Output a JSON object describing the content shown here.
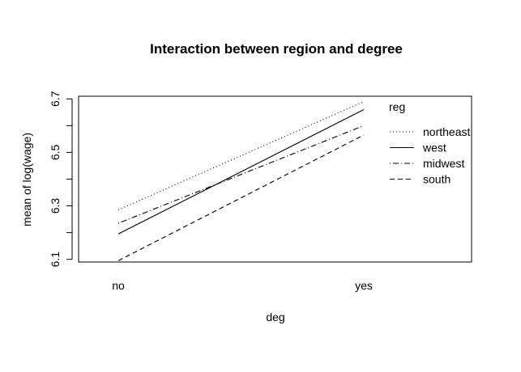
{
  "chart_data": {
    "type": "line",
    "title": "Interaction between region and degree",
    "xlabel": "deg",
    "ylabel": "mean of  log(wage)",
    "categories": [
      "no",
      "yes"
    ],
    "yticks": [
      "6.1",
      "6.3",
      "6.5",
      "6.7"
    ],
    "ylim": [
      6.09,
      6.71
    ],
    "grid": false,
    "legend": {
      "title": "reg",
      "position": "top-right"
    },
    "series": [
      {
        "name": "northeast",
        "values": [
          6.285,
          6.69
        ],
        "linestyle": "dotted"
      },
      {
        "name": "west",
        "values": [
          6.195,
          6.66
        ],
        "linestyle": "solid"
      },
      {
        "name": "midwest",
        "values": [
          6.235,
          6.6
        ],
        "linestyle": "dotdash"
      },
      {
        "name": "south",
        "values": [
          6.095,
          6.565
        ],
        "linestyle": "dashed"
      }
    ]
  }
}
